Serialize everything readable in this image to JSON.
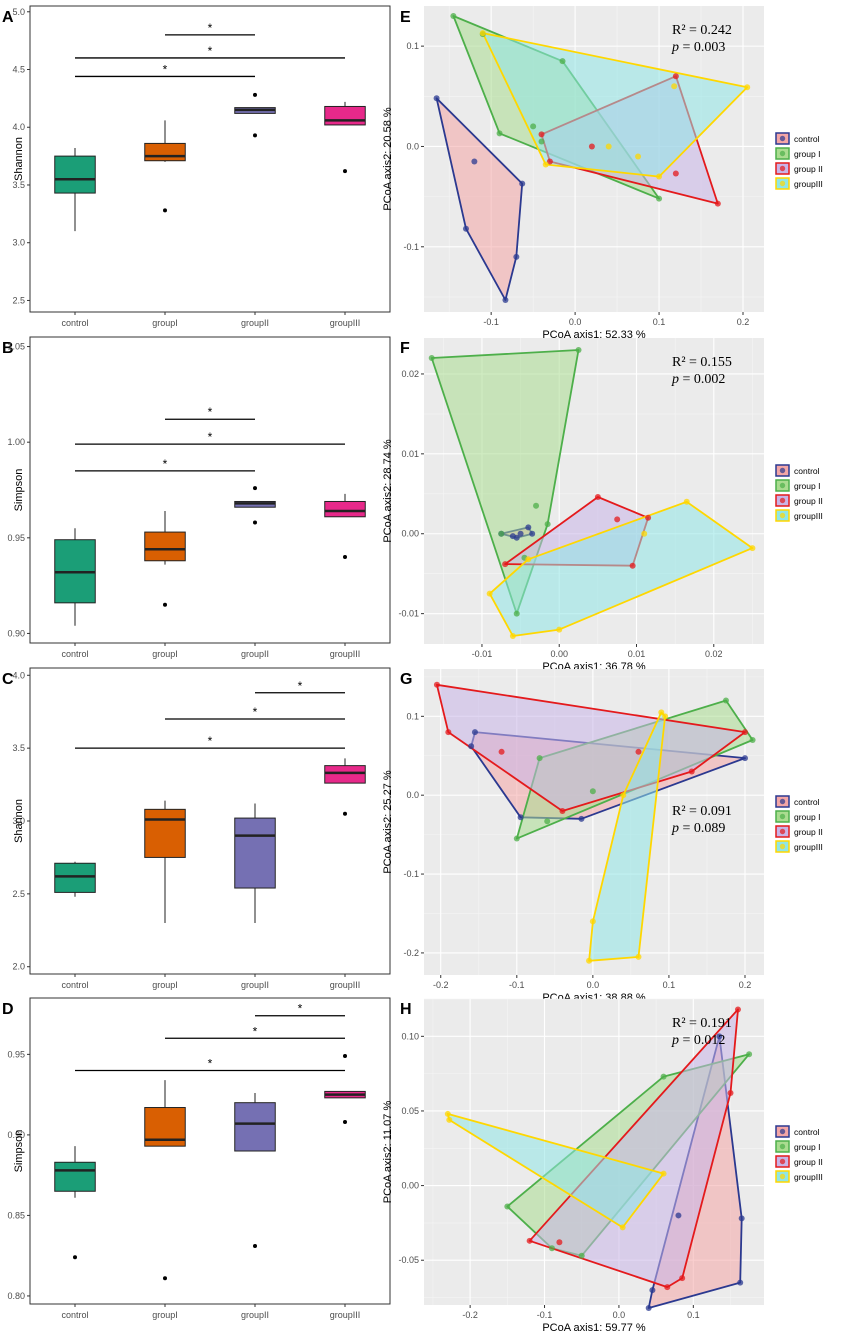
{
  "chart_data": [
    {
      "panel": "A",
      "type": "boxplot",
      "ylabel": "Shannon",
      "ylim": [
        2.4,
        5.05
      ],
      "yticks": [
        "2.5",
        "3.0",
        "3.5",
        "4.0",
        "4.5",
        "5.0"
      ],
      "categories": [
        "control",
        "groupI",
        "groupII",
        "groupIII"
      ],
      "colors": [
        "#1b9e77",
        "#d95f02",
        "#7570b3",
        "#e7298a"
      ],
      "boxes": [
        {
          "q1": 3.43,
          "median": 3.55,
          "q3": 3.75,
          "lo": 3.1,
          "hi": 3.82,
          "outliers": []
        },
        {
          "q1": 3.71,
          "median": 3.75,
          "q3": 3.86,
          "lo": 3.7,
          "hi": 4.06,
          "outliers": [
            3.28
          ]
        },
        {
          "q1": 4.12,
          "median": 4.15,
          "q3": 4.17,
          "lo": 4.12,
          "hi": 4.17,
          "outliers": [
            4.28,
            3.93
          ]
        },
        {
          "q1": 4.02,
          "median": 4.06,
          "q3": 4.18,
          "lo": 4.02,
          "hi": 4.22,
          "outliers": [
            3.62
          ]
        }
      ],
      "sig": [
        {
          "from": 0,
          "to": 2,
          "y": 4.44,
          "label": "*"
        },
        {
          "from": 0,
          "to": 3,
          "y": 4.6,
          "label": "*"
        },
        {
          "from": 1,
          "to": 2,
          "y": 4.8,
          "label": "*"
        }
      ]
    },
    {
      "panel": "B",
      "type": "boxplot",
      "ylabel": "Simpson",
      "ylim": [
        0.895,
        1.055
      ],
      "yticks": [
        "0.90",
        "0.95",
        "1.00",
        "1.05"
      ],
      "categories": [
        "control",
        "groupI",
        "groupII",
        "groupIII"
      ],
      "colors": [
        "#1b9e77",
        "#d95f02",
        "#7570b3",
        "#e7298a"
      ],
      "boxes": [
        {
          "q1": 0.916,
          "median": 0.932,
          "q3": 0.949,
          "lo": 0.904,
          "hi": 0.955,
          "outliers": []
        },
        {
          "q1": 0.938,
          "median": 0.944,
          "q3": 0.953,
          "lo": 0.936,
          "hi": 0.964,
          "outliers": [
            0.915
          ]
        },
        {
          "q1": 0.966,
          "median": 0.968,
          "q3": 0.969,
          "lo": 0.966,
          "hi": 0.969,
          "outliers": [
            0.976,
            0.958
          ]
        },
        {
          "q1": 0.961,
          "median": 0.964,
          "q3": 0.969,
          "lo": 0.961,
          "hi": 0.973,
          "outliers": [
            0.94
          ]
        }
      ],
      "sig": [
        {
          "from": 0,
          "to": 2,
          "y": 0.985,
          "label": "*"
        },
        {
          "from": 0,
          "to": 3,
          "y": 0.999,
          "label": "*"
        },
        {
          "from": 1,
          "to": 2,
          "y": 1.012,
          "label": "*"
        }
      ]
    },
    {
      "panel": "C",
      "type": "boxplot",
      "ylabel": "Shannon",
      "ylim": [
        1.95,
        4.05
      ],
      "yticks": [
        "2.0",
        "2.5",
        "3.0",
        "3.5",
        "4.0"
      ],
      "categories": [
        "control",
        "groupI",
        "groupII",
        "groupIII"
      ],
      "colors": [
        "#1b9e77",
        "#d95f02",
        "#7570b3",
        "#e7298a"
      ],
      "boxes": [
        {
          "q1": 2.51,
          "median": 2.62,
          "q3": 2.71,
          "lo": 2.48,
          "hi": 2.72,
          "outliers": []
        },
        {
          "q1": 2.75,
          "median": 3.01,
          "q3": 3.08,
          "lo": 2.3,
          "hi": 3.14,
          "outliers": []
        },
        {
          "q1": 2.54,
          "median": 2.9,
          "q3": 3.02,
          "lo": 2.3,
          "hi": 3.12,
          "outliers": []
        },
        {
          "q1": 3.26,
          "median": 3.33,
          "q3": 3.38,
          "lo": 3.26,
          "hi": 3.43,
          "outliers": [
            3.05
          ]
        }
      ],
      "sig": [
        {
          "from": 0,
          "to": 3,
          "y": 3.5,
          "label": "*"
        },
        {
          "from": 1,
          "to": 3,
          "y": 3.7,
          "label": "*"
        },
        {
          "from": 2,
          "to": 3,
          "y": 3.88,
          "label": "*"
        }
      ]
    },
    {
      "panel": "D",
      "type": "boxplot",
      "ylabel": "Simpson",
      "ylim": [
        0.795,
        0.985
      ],
      "yticks": [
        "0.80",
        "0.85",
        "0.90",
        "0.95"
      ],
      "categories": [
        "control",
        "groupI",
        "groupII",
        "groupIII"
      ],
      "colors": [
        "#1b9e77",
        "#d95f02",
        "#7570b3",
        "#e7298a"
      ],
      "boxes": [
        {
          "q1": 0.865,
          "median": 0.878,
          "q3": 0.883,
          "lo": 0.861,
          "hi": 0.893,
          "outliers": [
            0.824
          ]
        },
        {
          "q1": 0.893,
          "median": 0.897,
          "q3": 0.917,
          "lo": 0.893,
          "hi": 0.934,
          "outliers": [
            0.811
          ]
        },
        {
          "q1": 0.89,
          "median": 0.907,
          "q3": 0.92,
          "lo": 0.89,
          "hi": 0.926,
          "outliers": [
            0.831
          ]
        },
        {
          "q1": 0.923,
          "median": 0.925,
          "q3": 0.927,
          "lo": 0.923,
          "hi": 0.927,
          "outliers": [
            0.949,
            0.908
          ]
        }
      ],
      "sig": [
        {
          "from": 0,
          "to": 3,
          "y": 0.94,
          "label": "*"
        },
        {
          "from": 1,
          "to": 3,
          "y": 0.96,
          "label": "*"
        },
        {
          "from": 2,
          "to": 3,
          "y": 0.974,
          "label": "*"
        }
      ]
    },
    {
      "panel": "E",
      "type": "scatter",
      "xlabel": "PCoA axis1:  52.33 %",
      "ylabel": "PCoA axis2:  20.58 %",
      "xlim": [
        -0.18,
        0.225
      ],
      "ylim": [
        -0.165,
        0.14
      ],
      "xticks": [
        -0.1,
        0.0,
        0.1,
        0.2
      ],
      "xtick_labels": [
        "-0.1",
        "0.0",
        "0.1",
        "0.2"
      ],
      "yticks": [
        -0.1,
        0.0,
        0.1
      ],
      "ytick_labels": [
        "-0.1",
        "0.0",
        "0.1"
      ],
      "stat_r2": "R² = 0.242",
      "stat_p_label": "p",
      "stat_p_value": " = 0.003",
      "series": [
        {
          "name": "control",
          "stroke": "#2b3990",
          "fill": "#f4a6a6",
          "points": [
            [
              -0.165,
              0.048
            ],
            [
              -0.13,
              -0.082
            ],
            [
              -0.083,
              -0.153
            ],
            [
              -0.07,
              -0.11
            ],
            [
              -0.063,
              -0.037
            ],
            [
              -0.12,
              -0.015
            ]
          ]
        },
        {
          "name": "group I",
          "stroke": "#4daf4a",
          "fill": "#aadc90",
          "points": [
            [
              -0.145,
              0.13
            ],
            [
              -0.11,
              0.112
            ],
            [
              -0.015,
              0.085
            ],
            [
              0.1,
              -0.052
            ],
            [
              -0.04,
              0.005
            ],
            [
              -0.09,
              0.013
            ],
            [
              -0.05,
              0.02
            ]
          ]
        },
        {
          "name": "group II",
          "stroke": "#e41a1c",
          "fill": "#c9b4e8",
          "points": [
            [
              -0.04,
              0.012
            ],
            [
              0.17,
              -0.057
            ],
            [
              0.12,
              0.07
            ],
            [
              0.12,
              -0.027
            ],
            [
              0.02,
              0.0
            ],
            [
              -0.03,
              -0.015
            ]
          ]
        },
        {
          "name": "groupIII",
          "stroke": "#ffd700",
          "fill": "#8fe6e6",
          "points": [
            [
              -0.11,
              0.113
            ],
            [
              0.205,
              0.059
            ],
            [
              0.1,
              -0.03
            ],
            [
              0.075,
              -0.01
            ],
            [
              -0.035,
              -0.018
            ],
            [
              0.118,
              0.06
            ],
            [
              0.04,
              0.0
            ]
          ]
        }
      ]
    },
    {
      "panel": "F",
      "type": "scatter",
      "xlabel": "PCoA axis1:  36.78 %",
      "ylabel": "PCoA axis2:  28.74 %",
      "xlim": [
        -0.0175,
        0.0265
      ],
      "ylim": [
        -0.0138,
        0.0245
      ],
      "xticks": [
        -0.01,
        0.0,
        0.01,
        0.02
      ],
      "xtick_labels": [
        "-0.01",
        "0.00",
        "0.01",
        "0.02"
      ],
      "yticks": [
        -0.01,
        0.0,
        0.01,
        0.02
      ],
      "ytick_labels": [
        "-0.01",
        "0.00",
        "0.01",
        "0.02"
      ],
      "stat_r2": "R² = 0.155",
      "stat_p_label": "p",
      "stat_p_value": " = 0.002",
      "series": [
        {
          "name": "control",
          "stroke": "#2b3990",
          "fill": "#f4a6a6",
          "points": [
            [
              -0.0075,
              0.0
            ],
            [
              -0.0055,
              -0.0005
            ],
            [
              -0.0035,
              0.0
            ],
            [
              -0.004,
              0.0008
            ],
            [
              -0.006,
              -0.0003
            ],
            [
              -0.005,
              0.0
            ]
          ]
        },
        {
          "name": "group I",
          "stroke": "#4daf4a",
          "fill": "#aadc90",
          "points": [
            [
              -0.0165,
              0.022
            ],
            [
              0.0025,
              0.023
            ],
            [
              -0.0055,
              -0.01
            ],
            [
              -0.0075,
              0.0
            ],
            [
              -0.003,
              0.0035
            ],
            [
              -0.0015,
              0.0012
            ],
            [
              -0.0045,
              -0.003
            ]
          ]
        },
        {
          "name": "group II",
          "stroke": "#e41a1c",
          "fill": "#c9b4e8",
          "points": [
            [
              -0.007,
              -0.0038
            ],
            [
              0.005,
              0.0046
            ],
            [
              0.0115,
              0.002
            ],
            [
              0.0095,
              -0.004
            ],
            [
              0.0075,
              0.0018
            ]
          ]
        },
        {
          "name": "groupIII",
          "stroke": "#ffd700",
          "fill": "#8fe6e6",
          "points": [
            [
              -0.009,
              -0.0075
            ],
            [
              -0.006,
              -0.0128
            ],
            [
              0.0,
              -0.012
            ],
            [
              0.025,
              -0.0018
            ],
            [
              0.0165,
              0.004
            ],
            [
              -0.004,
              -0.0032
            ],
            [
              0.011,
              0.0
            ]
          ]
        }
      ]
    },
    {
      "panel": "G",
      "type": "scatter",
      "xlabel": "PCoA axis1:  38.88 %",
      "ylabel": "PCoA axis2:  25.27 %",
      "xlim": [
        -0.222,
        0.225
      ],
      "ylim": [
        -0.228,
        0.16
      ],
      "xticks": [
        -0.2,
        -0.1,
        0.0,
        0.1,
        0.2
      ],
      "xtick_labels": [
        "-0.2",
        "-0.1",
        "0.0",
        "0.1",
        "0.2"
      ],
      "yticks": [
        -0.2,
        -0.1,
        0.0,
        0.1
      ],
      "ytick_labels": [
        "-0.2",
        "-0.1",
        "0.0",
        "0.1"
      ],
      "stat_r2": "R² = 0.091",
      "stat_p_label": "p",
      "stat_p_value": " = 0.089",
      "series": [
        {
          "name": "control",
          "stroke": "#2b3990",
          "fill": "#f4a6a6",
          "points": [
            [
              -0.155,
              0.08
            ],
            [
              -0.16,
              0.062
            ],
            [
              -0.095,
              -0.028
            ],
            [
              -0.015,
              -0.03
            ],
            [
              0.2,
              0.047
            ]
          ]
        },
        {
          "name": "group I",
          "stroke": "#4daf4a",
          "fill": "#aadc90",
          "points": [
            [
              -0.1,
              -0.055
            ],
            [
              -0.06,
              -0.033
            ],
            [
              -0.07,
              0.047
            ],
            [
              0.175,
              0.12
            ],
            [
              0.21,
              0.07
            ],
            [
              0.0,
              0.005
            ]
          ]
        },
        {
          "name": "group II",
          "stroke": "#e41a1c",
          "fill": "#c9b4e8",
          "points": [
            [
              -0.205,
              0.14
            ],
            [
              -0.19,
              0.08
            ],
            [
              -0.04,
              -0.02
            ],
            [
              0.13,
              0.03
            ],
            [
              0.2,
              0.08
            ],
            [
              -0.12,
              0.055
            ],
            [
              0.06,
              0.055
            ]
          ]
        },
        {
          "name": "groupIII",
          "stroke": "#ffd700",
          "fill": "#8fe6e6",
          "points": [
            [
              0.09,
              0.105
            ],
            [
              0.06,
              -0.205
            ],
            [
              -0.005,
              -0.21
            ],
            [
              0.0,
              -0.16
            ],
            [
              0.095,
              0.1
            ],
            [
              0.04,
              0.0
            ]
          ]
        }
      ]
    },
    {
      "panel": "H",
      "type": "scatter",
      "xlabel": "PCoA axis1:  59.77 %",
      "ylabel": "PCoA axis2:  11.07 %",
      "xlim": [
        -0.262,
        0.195
      ],
      "ylim": [
        -0.08,
        0.125
      ],
      "xticks": [
        -0.2,
        -0.1,
        0.0,
        0.1
      ],
      "xtick_labels": [
        "-0.2",
        "-0.1",
        "0.0",
        "0.1"
      ],
      "yticks": [
        -0.05,
        0.0,
        0.05,
        0.1
      ],
      "ytick_labels": [
        "-0.05",
        "0.00",
        "0.05",
        "0.10"
      ],
      "stat_r2": "R² = 0.191",
      "stat_p_label": "p",
      "stat_p_value": " = 0.012",
      "series": [
        {
          "name": "control",
          "stroke": "#2b3990",
          "fill": "#f4a6a6",
          "points": [
            [
              0.135,
              0.1
            ],
            [
              0.165,
              -0.022
            ],
            [
              0.163,
              -0.065
            ],
            [
              0.045,
              -0.07
            ],
            [
              0.04,
              -0.082
            ],
            [
              0.08,
              -0.02
            ]
          ]
        },
        {
          "name": "group I",
          "stroke": "#4daf4a",
          "fill": "#aadc90",
          "points": [
            [
              -0.15,
              -0.014
            ],
            [
              -0.09,
              -0.042
            ],
            [
              -0.05,
              -0.047
            ],
            [
              0.06,
              0.073
            ],
            [
              0.175,
              0.088
            ]
          ]
        },
        {
          "name": "group II",
          "stroke": "#e41a1c",
          "fill": "#c9b4e8",
          "points": [
            [
              -0.12,
              -0.037
            ],
            [
              0.16,
              0.118
            ],
            [
              0.15,
              0.062
            ],
            [
              0.085,
              -0.062
            ],
            [
              0.065,
              -0.068
            ],
            [
              -0.08,
              -0.038
            ]
          ]
        },
        {
          "name": "groupIII",
          "stroke": "#ffd700",
          "fill": "#8fe6e6",
          "points": [
            [
              -0.23,
              0.048
            ],
            [
              -0.228,
              0.044
            ],
            [
              0.005,
              -0.028
            ],
            [
              0.06,
              0.008
            ]
          ]
        }
      ]
    }
  ]
}
